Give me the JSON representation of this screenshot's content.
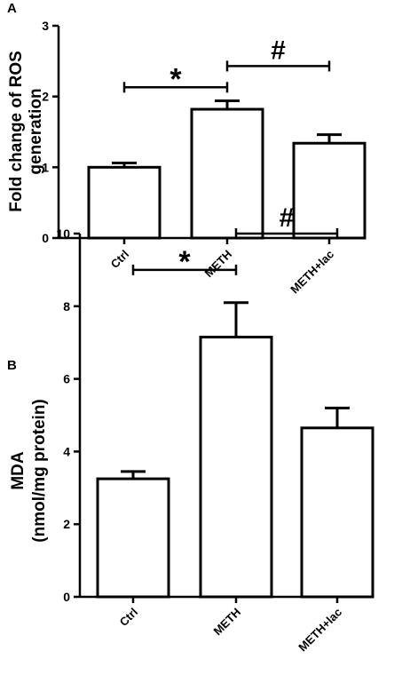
{
  "chart_data": [
    {
      "type": "bar",
      "panel_label": "A",
      "ylabel_lines": [
        "Fold change of ROS",
        "generation"
      ],
      "xlabel": "",
      "categories": [
        "Ctrl",
        "METH",
        "METH+lac"
      ],
      "values": [
        1.0,
        1.82,
        1.34
      ],
      "errors": [
        0.06,
        0.12,
        0.12
      ],
      "ylim": [
        0,
        3
      ],
      "yticks": [
        "0",
        "1",
        "2",
        "3"
      ],
      "yticks_values": [
        0,
        1,
        2,
        3
      ],
      "grid": false,
      "annotations": [
        {
          "symbol": "*",
          "from": 0,
          "to": 1,
          "y": 2.13
        },
        {
          "symbol": "#",
          "from": 1,
          "to": 2,
          "y": 2.43
        }
      ]
    },
    {
      "type": "bar",
      "panel_label": "B",
      "ylabel_lines": [
        "MDA",
        "(nmol/mg protein)"
      ],
      "xlabel": "",
      "categories": [
        "Ctrl",
        "METH",
        "METH+lac"
      ],
      "values": [
        3.25,
        7.15,
        4.65
      ],
      "errors": [
        0.2,
        0.95,
        0.55
      ],
      "ylim": [
        0,
        10
      ],
      "yticks": [
        "0",
        "2",
        "4",
        "6",
        "8",
        "10"
      ],
      "yticks_values": [
        0,
        2,
        4,
        6,
        8,
        10
      ],
      "grid": false,
      "annotations": [
        {
          "symbol": "*",
          "from": 0,
          "to": 1,
          "y": 9.0
        },
        {
          "symbol": "#",
          "from": 1,
          "to": 2,
          "y": 10.0
        }
      ]
    }
  ]
}
